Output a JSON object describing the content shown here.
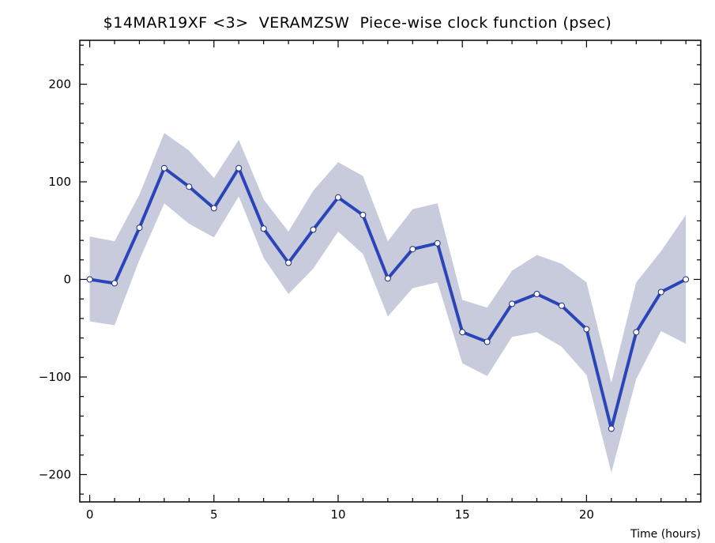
{
  "chart_data": {
    "type": "line",
    "title": "$14MAR19XF <3>  VERAMZSW  Piece-wise clock function (psec)",
    "xlabel": "Time (hours)",
    "ylabel": "",
    "xlim": [
      -0.4,
      24.6
    ],
    "ylim": [
      -228,
      245
    ],
    "x_ticks": [
      0,
      5,
      10,
      15,
      20
    ],
    "y_ticks": [
      -200,
      -100,
      0,
      100,
      200
    ],
    "grid": false,
    "colors": {
      "line": "#2a45b8",
      "band": "#c8cbdc",
      "point_fill": "#ffffff"
    },
    "series": [
      {
        "x": [
          0,
          1,
          2,
          3,
          4,
          5,
          6,
          7,
          8,
          9,
          10,
          11,
          12,
          13,
          14,
          15,
          16,
          17,
          18,
          19,
          20,
          21,
          22,
          23,
          24
        ],
        "y": [
          0,
          -4,
          53,
          114,
          95,
          73,
          114,
          52,
          17,
          51,
          84,
          66,
          1,
          31,
          37,
          -54,
          -64,
          -25,
          -15,
          -27,
          -51,
          -153,
          -54,
          -13,
          0
        ],
        "upper": [
          44,
          39,
          87,
          150,
          132,
          104,
          143,
          82,
          49,
          91,
          120,
          106,
          39,
          72,
          78,
          -21,
          -29,
          9,
          25,
          16,
          -3,
          -106,
          -3,
          29,
          66
        ],
        "lower": [
          -43,
          -47,
          20,
          78,
          57,
          43,
          85,
          22,
          -15,
          11,
          49,
          26,
          -38,
          -9,
          -3,
          -86,
          -99,
          -59,
          -54,
          -69,
          -98,
          -198,
          -102,
          -53,
          -66
        ]
      }
    ]
  }
}
